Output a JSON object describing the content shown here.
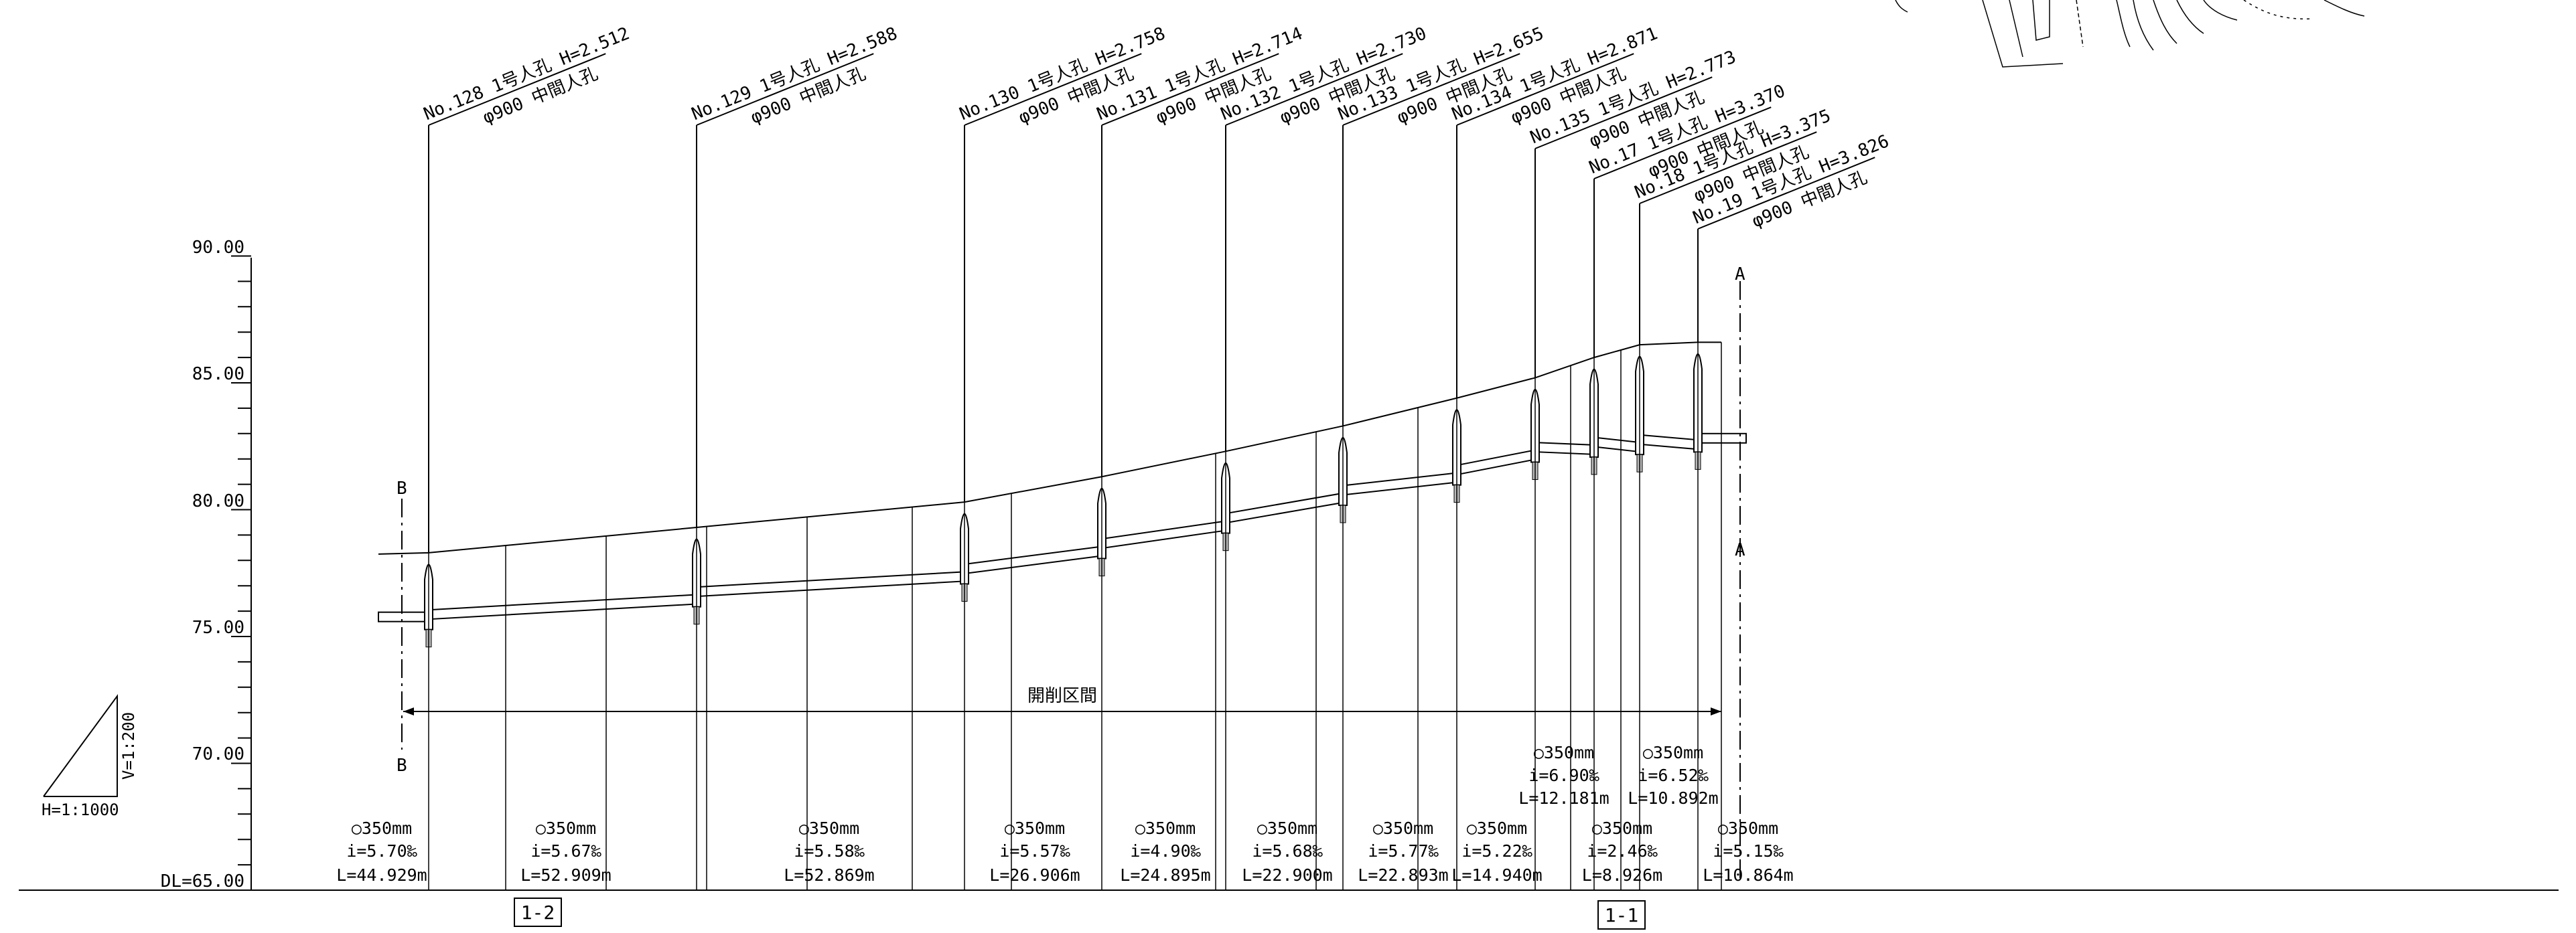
{
  "y_axis": {
    "ticks": [
      "90.00",
      "85.00",
      "80.00",
      "75.00",
      "70.00",
      "DL=65.00"
    ],
    "datum": 65.0,
    "top": 90.0
  },
  "scale": {
    "vertical": "V=1:200",
    "horizontal": "H=1:1000"
  },
  "section_label": "開削区間",
  "section_marks": {
    "left_top": "B",
    "left_bottom": "B",
    "right_top": "A",
    "right_bottom": "A"
  },
  "boxes": [
    "1-2",
    "1-1"
  ],
  "manholes": [
    {
      "line1": "No.128 1号人孔 H=2.512",
      "line2": "φ900 中間人孔",
      "ground": 78.3,
      "invert": 75.8
    },
    {
      "line1": "No.129 1号人孔 H=2.588",
      "line2": "φ900 中間人孔",
      "ground": 79.3,
      "invert": 76.7
    },
    {
      "line1": "No.130 1号人孔 H=2.758",
      "line2": "φ900 中間人孔",
      "ground": 80.3,
      "invert": 77.6
    },
    {
      "line1": "No.131 1号人孔 H=2.714",
      "line2": "φ900 中間人孔",
      "ground": 81.3,
      "invert": 78.6
    },
    {
      "line1": "No.132 1号人孔 H=2.730",
      "line2": "φ900 中間人孔",
      "ground": 82.3,
      "invert": 79.6
    },
    {
      "line1": "No.133 1号人孔 H=2.655",
      "line2": "φ900 中間人孔",
      "ground": 83.3,
      "invert": 80.7
    },
    {
      "line1": "No.134 1号人孔 H=2.871",
      "line2": "φ900 中間人孔",
      "ground": 84.4,
      "invert": 81.5
    },
    {
      "line1": "No.135 1号人孔 H=2.773",
      "line2": "φ900 中間人孔",
      "ground": 85.2,
      "invert": 82.4
    },
    {
      "line1": "No.17 1号人孔 H=3.370",
      "line2": "φ900 中間人孔",
      "ground": 86.0,
      "invert": 82.6
    },
    {
      "line1": "No.18 1号人孔 H=3.375",
      "line2": "φ900 中間人孔",
      "ground": 86.5,
      "invert": 82.7
    },
    {
      "line1": "No.19 1号人孔 H=3.826",
      "line2": "φ900 中間人孔",
      "ground": 86.6,
      "invert": 82.8
    }
  ],
  "pipes": [
    {
      "dia": "○350mm",
      "slope": "i=5.70‰",
      "length": "L=44.929m"
    },
    {
      "dia": "○350mm",
      "slope": "i=5.67‰",
      "length": "L=52.909m"
    },
    {
      "dia": "○350mm",
      "slope": "i=5.58‰",
      "length": "L=52.869m"
    },
    {
      "dia": "○350mm",
      "slope": "i=5.57‰",
      "length": "L=26.906m"
    },
    {
      "dia": "○350mm",
      "slope": "i=4.90‰",
      "length": "L=24.895m"
    },
    {
      "dia": "○350mm",
      "slope": "i=5.68‰",
      "length": "L=22.900m"
    },
    {
      "dia": "○350mm",
      "slope": "i=5.77‰",
      "length": "L=22.893m"
    },
    {
      "dia": "○350mm",
      "slope": "i=5.22‰",
      "length": "L=14.940m"
    },
    {
      "dia": "○350mm",
      "slope": "i=2.46‰",
      "length": "L=8.926m"
    },
    {
      "dia": "○350mm",
      "slope": "i=5.15‰",
      "length": "L=10.864m"
    }
  ],
  "pipes_upper": [
    {
      "dia": "○350mm",
      "slope": "i=6.90‰",
      "length": "L=12.181m"
    },
    {
      "dia": "○350mm",
      "slope": "i=6.52‰",
      "length": "L=10.892m"
    }
  ]
}
